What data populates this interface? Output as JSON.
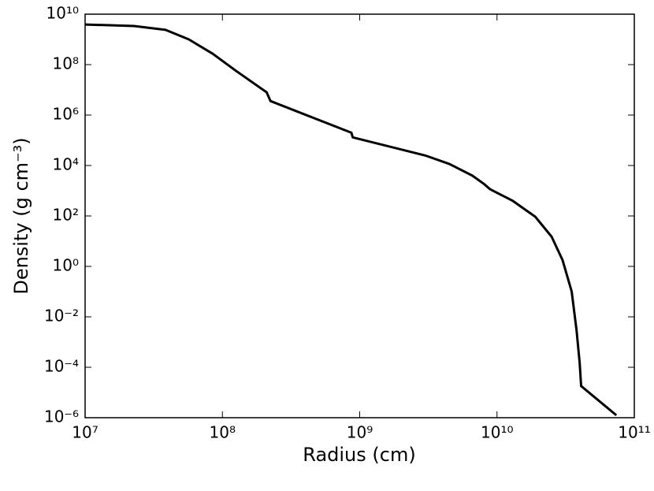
{
  "chart_data": {
    "type": "line",
    "xlabel": "Radius (cm)",
    "ylabel": "Density (g cm⁻³)",
    "xscale": "log",
    "yscale": "log",
    "color": "#000000",
    "xlim": [
      10000000,
      100000000000
    ],
    "ylim": [
      1e-06,
      10000000000
    ],
    "xticks": [
      {
        "value": 10000000,
        "label": "10⁷"
      },
      {
        "value": 100000000,
        "label": "10⁸"
      },
      {
        "value": 1000000000,
        "label": "10⁹"
      },
      {
        "value": 10000000000,
        "label": "10¹⁰"
      },
      {
        "value": 100000000000,
        "label": "10¹¹"
      }
    ],
    "yticks": [
      {
        "value": 1e-06,
        "label": "10⁻⁶"
      },
      {
        "value": 0.0001,
        "label": "10⁻⁴"
      },
      {
        "value": 0.01,
        "label": "10⁻²"
      },
      {
        "value": 1,
        "label": "10⁰"
      },
      {
        "value": 100,
        "label": "10²"
      },
      {
        "value": 10000,
        "label": "10⁴"
      },
      {
        "value": 1000000,
        "label": "10⁶"
      },
      {
        "value": 100000000,
        "label": "10⁸"
      },
      {
        "value": 10000000000,
        "label": "10¹⁰"
      }
    ],
    "x": [
      10000000,
      22700000,
      38500000,
      57000000,
      85000000,
      126000000,
      210000000,
      224000000,
      870000000,
      890000000,
      3000000000,
      4500000000,
      6600000000,
      8100000000,
      8900000000,
      13000000000,
      19000000000,
      25000000000,
      30000000000,
      35000000000,
      38000000000,
      40000000000,
      41000000000,
      74000000000
    ],
    "values": [
      3900000000,
      3400000000,
      2400000000,
      1000000000,
      270000000,
      56000000,
      8000000,
      3600000,
      200000,
      130000,
      25000,
      11500,
      4000,
      1800,
      1150,
      400,
      93,
      15,
      1.8,
      0.1,
      0.0028,
      0.00015,
      1.8e-05,
      1.25e-06
    ]
  }
}
